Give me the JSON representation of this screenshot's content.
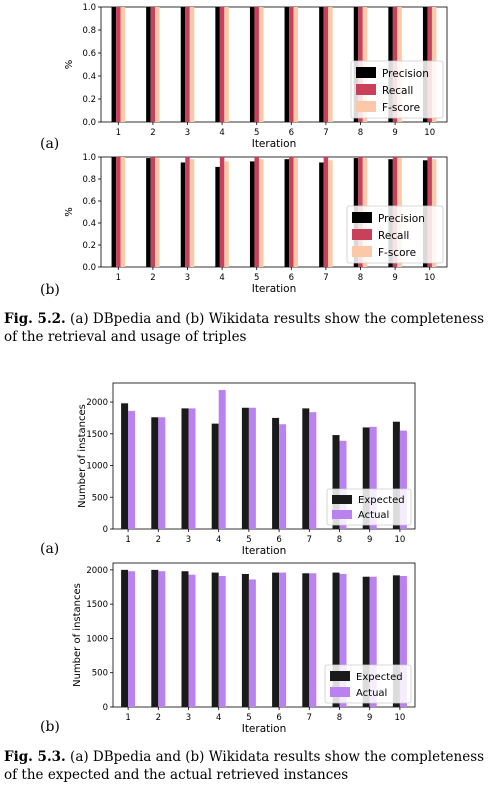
{
  "figure_52": {
    "caption_label": "Fig. 5.2.",
    "caption_text": "(a) DBpedia and (b) Wikidata results show the completeness of the retrieval and usage of triples",
    "panel_a_label": "(a)",
    "panel_b_label": "(b)"
  },
  "figure_53": {
    "caption_label": "Fig. 5.3.",
    "caption_text": "(a) DBpedia and (b) Wikidata results show the completeness of the expected and the actual retrieved instances",
    "panel_a_label": "(a)",
    "panel_b_label": "(b)"
  },
  "chart_data": [
    {
      "type": "bar",
      "xlabel": "Iteration",
      "ylabel": "%",
      "ylim": [
        0,
        1.0
      ],
      "yticks": [
        "0.0",
        "0.2",
        "0.4",
        "0.6",
        "0.8",
        "1.0"
      ],
      "categories": [
        "1",
        "2",
        "3",
        "4",
        "5",
        "6",
        "7",
        "8",
        "9",
        "10"
      ],
      "legend_position": "bottom-right",
      "series": [
        {
          "name": "Precision",
          "color": "#000000",
          "values": [
            1,
            1,
            1,
            1,
            1,
            1,
            1,
            1,
            1,
            1
          ]
        },
        {
          "name": "Recall",
          "color": "#c8405a",
          "values": [
            1,
            1,
            1,
            1,
            1,
            1,
            1,
            1,
            1,
            1
          ]
        },
        {
          "name": "F-score",
          "color": "#fcc9a8",
          "values": [
            1,
            1,
            1,
            1,
            1,
            1,
            1,
            1,
            1,
            1
          ]
        }
      ]
    },
    {
      "type": "bar",
      "xlabel": "Iteration",
      "ylabel": "%",
      "ylim": [
        0,
        1.0
      ],
      "yticks": [
        "0.0",
        "0.2",
        "0.4",
        "0.6",
        "0.8",
        "1.0"
      ],
      "categories": [
        "1",
        "2",
        "3",
        "4",
        "5",
        "6",
        "7",
        "8",
        "9",
        "10"
      ],
      "legend_position": "bottom-right",
      "series": [
        {
          "name": "Precision",
          "color": "#000000",
          "values": [
            1.0,
            0.99,
            0.95,
            0.91,
            0.96,
            0.98,
            0.95,
            0.99,
            0.98,
            0.97
          ]
        },
        {
          "name": "Recall",
          "color": "#c8405a",
          "values": [
            1.0,
            1.0,
            1.0,
            1.0,
            1.0,
            1.0,
            1.0,
            1.0,
            1.0,
            1.0
          ]
        },
        {
          "name": "F-score",
          "color": "#fcc9a8",
          "values": [
            1.0,
            0.99,
            0.98,
            0.96,
            0.98,
            0.99,
            0.97,
            0.99,
            0.99,
            0.98
          ]
        }
      ]
    },
    {
      "type": "bar",
      "xlabel": "Iteration",
      "ylabel": "Number of instances",
      "ylim": [
        0,
        2300
      ],
      "yticks": [
        "0",
        "500",
        "1000",
        "1500",
        "2000"
      ],
      "ytick_values": [
        0,
        500,
        1000,
        1500,
        2000
      ],
      "categories": [
        "1",
        "2",
        "3",
        "4",
        "5",
        "6",
        "7",
        "8",
        "9",
        "10"
      ],
      "legend_position": "bottom-right",
      "series": [
        {
          "name": "Expected",
          "color": "#1a1a1a",
          "values": [
            1980,
            1760,
            1900,
            1660,
            1910,
            1750,
            1900,
            1480,
            1600,
            1690
          ]
        },
        {
          "name": "Actual",
          "color": "#b982f0",
          "values": [
            1860,
            1760,
            1900,
            2190,
            1910,
            1650,
            1840,
            1390,
            1610,
            1550
          ]
        }
      ]
    },
    {
      "type": "bar",
      "xlabel": "Iteration",
      "ylabel": "Number of instances",
      "ylim": [
        0,
        2100
      ],
      "yticks": [
        "0",
        "500",
        "1000",
        "1500",
        "2000"
      ],
      "ytick_values": [
        0,
        500,
        1000,
        1500,
        2000
      ],
      "categories": [
        "1",
        "2",
        "3",
        "4",
        "5",
        "6",
        "7",
        "8",
        "9",
        "10"
      ],
      "legend_position": "bottom-right",
      "series": [
        {
          "name": "Expected",
          "color": "#1a1a1a",
          "values": [
            2000,
            2000,
            1980,
            1960,
            1940,
            1960,
            1950,
            1960,
            1900,
            1920
          ]
        },
        {
          "name": "Actual",
          "color": "#b982f0",
          "values": [
            1980,
            1980,
            1930,
            1910,
            1860,
            1960,
            1950,
            1940,
            1900,
            1910
          ]
        }
      ]
    }
  ]
}
